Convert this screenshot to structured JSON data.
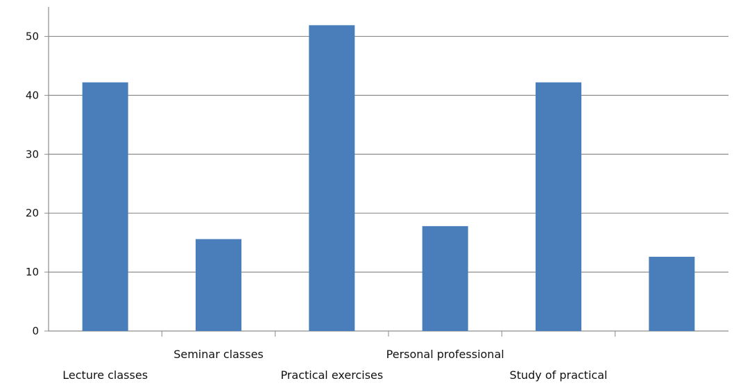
{
  "chart_data": {
    "type": "bar",
    "title": "",
    "xlabel": "",
    "ylabel": "",
    "categories": [
      "Lecture classes",
      "Seminar classes",
      "Practical exercises",
      "Personal professional",
      "Study of practical",
      ""
    ],
    "values": [
      42.2,
      15.6,
      51.9,
      17.8,
      42.2,
      12.6
    ],
    "ylim": [
      0,
      55
    ],
    "yticks": [
      0,
      10,
      20,
      30,
      40,
      50
    ],
    "grid": true,
    "legend": "none",
    "bar_color": "#4A7EBB",
    "grid_color": "#8C8C8C"
  }
}
